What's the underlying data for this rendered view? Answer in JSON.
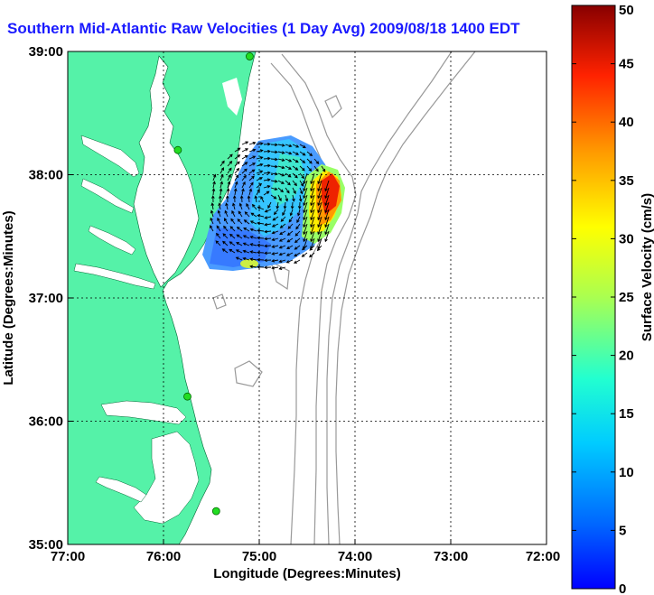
{
  "title": "Southern Mid-Atlantic Raw Velocities (1 Day Avg) 2009/08/18 1400 EDT",
  "map": {
    "xlabel": "Longitude (Degrees:Minutes)",
    "ylabel": "Latitude (Degrees:Minutes)",
    "x_ticks": [
      "77:00",
      "76:00",
      "75:00",
      "74:00",
      "73:00",
      "72:00"
    ],
    "y_ticks": [
      "39:00",
      "38:00",
      "37:00",
      "36:00",
      "35:00"
    ],
    "xlim": [
      -77,
      -72
    ],
    "ylim": [
      35,
      39
    ],
    "grid": true,
    "colors": {
      "land": "#55f2a8",
      "water": "#ffffff",
      "bathymetry": "#999999",
      "station": "#22dd22"
    }
  },
  "colorbar": {
    "label": "Surface Velocity (cm/s)",
    "ticks": [
      "0",
      "5",
      "10",
      "15",
      "20",
      "25",
      "30",
      "35",
      "40",
      "45",
      "50"
    ],
    "range": [
      0,
      50
    ],
    "colormap": "jet"
  },
  "stations": [
    {
      "name": "",
      "lon": -75.1,
      "lat": 38.96
    },
    {
      "name": "",
      "lon": -75.85,
      "lat": 38.2
    },
    {
      "name": "",
      "lon": -75.75,
      "lat": 36.2
    },
    {
      "name": "",
      "lon": -75.45,
      "lat": 35.27
    }
  ]
}
